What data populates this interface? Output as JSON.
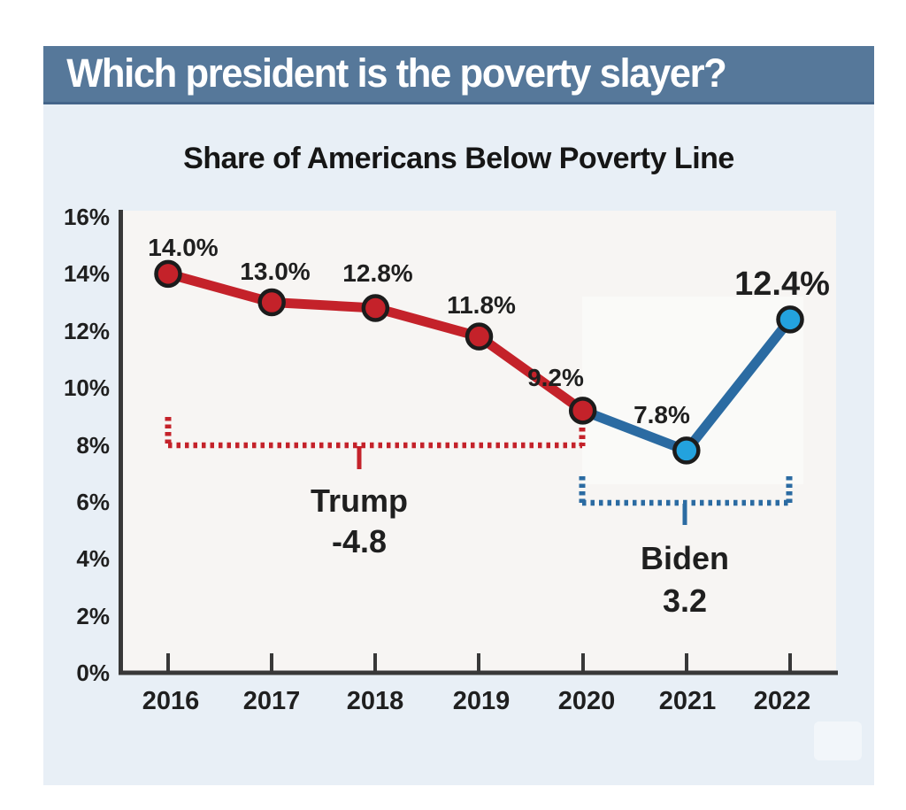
{
  "page": {
    "background": "#ffffff"
  },
  "card": {
    "background": "#e8eff6"
  },
  "header": {
    "title": "Which president is the poverty slayer?",
    "background": "#56789a",
    "border_color": "#44658a",
    "text_color": "#ffffff"
  },
  "chart_data": {
    "type": "line",
    "title": "Share of Americans Below Poverty Line",
    "x": [
      2016,
      2017,
      2018,
      2019,
      2020,
      2021,
      2022
    ],
    "values": [
      14.0,
      13.0,
      12.8,
      11.8,
      9.2,
      7.8,
      12.4
    ],
    "point_labels": [
      "14.0%",
      "13.0%",
      "12.8%",
      "11.8%",
      "9.2%",
      "7.8%",
      "12.4%"
    ],
    "series": [
      {
        "name": "Trump",
        "color": "#c4222a",
        "marker_fill": "#c4222a",
        "years": [
          2016,
          2017,
          2018,
          2019,
          2020
        ],
        "values": [
          14.0,
          13.0,
          12.8,
          11.8,
          9.2
        ],
        "net_change": "-4.8"
      },
      {
        "name": "Biden",
        "color": "#2b6ba2",
        "marker_fill": "#23a2de",
        "years": [
          2020,
          2021,
          2022
        ],
        "values": [
          9.2,
          7.8,
          12.4
        ],
        "net_change": "3.2"
      }
    ],
    "marker_outline": "#1c1c1c",
    "axis_color": "#383838",
    "ylim": [
      0,
      16
    ],
    "ytick_step": 2,
    "ytick_labels": [
      "16%",
      "14%",
      "12%",
      "10%",
      "8%",
      "6%",
      "4%",
      "2%",
      "0%"
    ],
    "xtick_labels": [
      "2016",
      "2017",
      "2018",
      "2019",
      "2020",
      "2021",
      "2022"
    ],
    "grid": false,
    "legend": "none",
    "annotations": [
      {
        "label": "Trump",
        "value": "-4.8",
        "color": "#c4222a",
        "span_years": [
          2016,
          2020
        ]
      },
      {
        "label": "Biden",
        "value": "3.2",
        "color": "#2b6ba2",
        "span_years": [
          2020,
          2022
        ]
      }
    ]
  }
}
